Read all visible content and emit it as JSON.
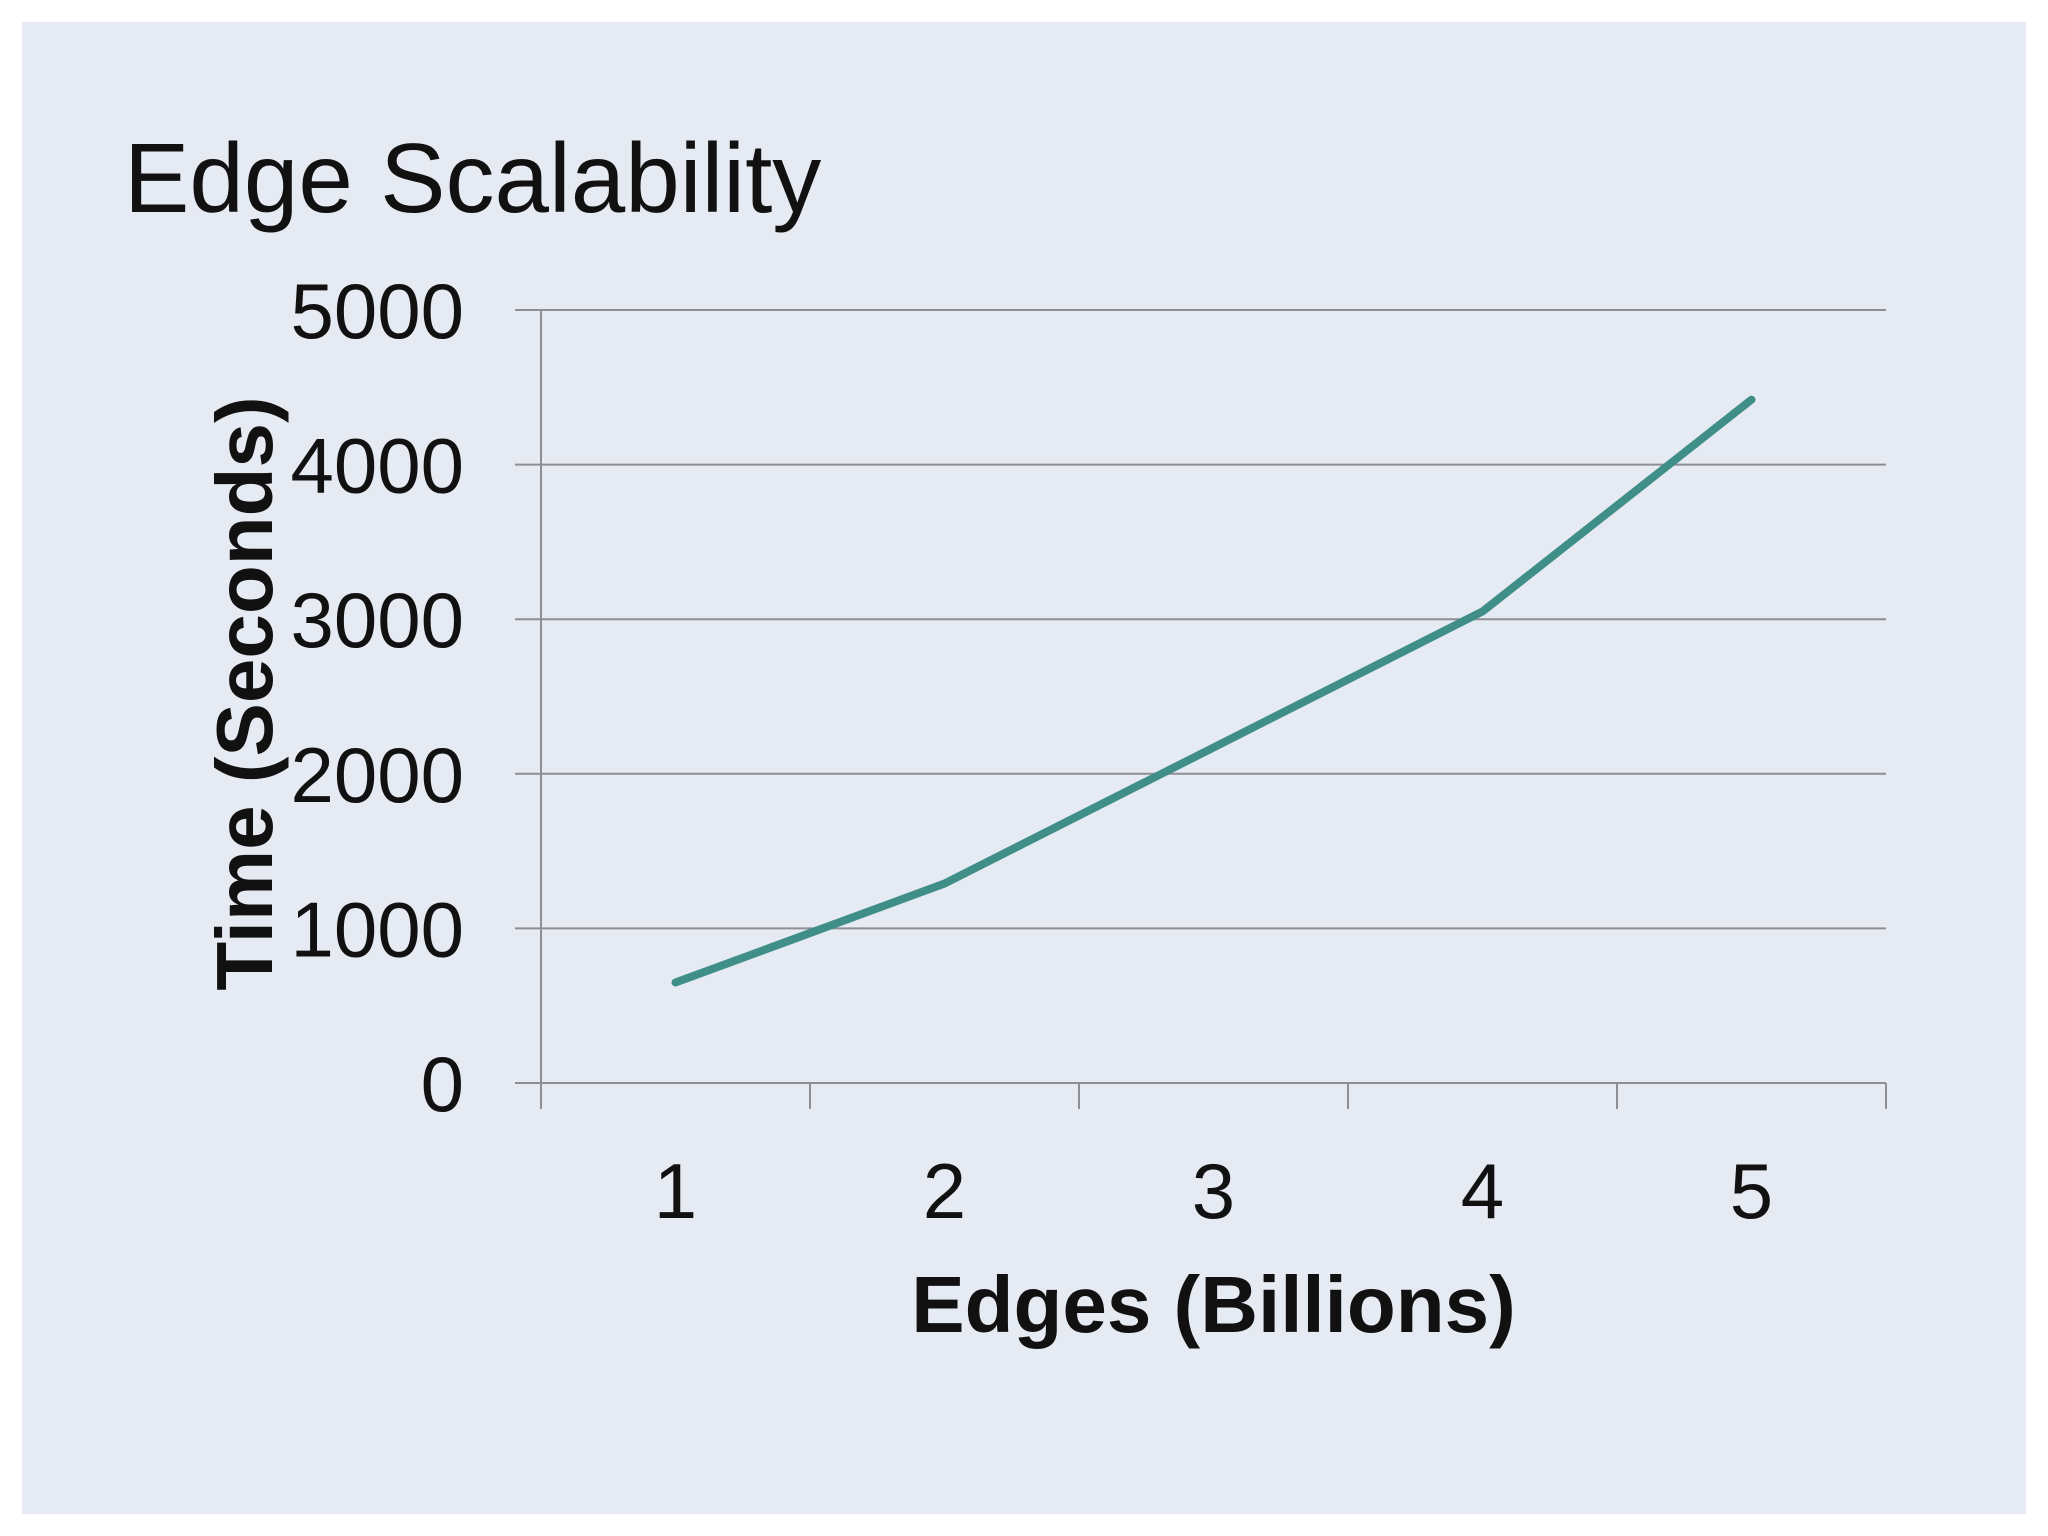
{
  "chart_data": {
    "type": "line",
    "title": "Edge Scalability",
    "xlabel": "Edges (Billions)",
    "ylabel": "Time (Seconds)",
    "categories": [
      "1",
      "2",
      "3",
      "4",
      "5"
    ],
    "series": [
      {
        "values": [
          650,
          1290,
          2170,
          3050,
          4420
        ]
      }
    ],
    "ylim": [
      0,
      5000
    ],
    "yticks": [
      "0",
      "1000",
      "2000",
      "3000",
      "4000",
      "5000"
    ],
    "grid": true,
    "legend": "none",
    "colors": {
      "line": "#3f8f88",
      "grid": "#8e8e95",
      "background": "#e6eaf2"
    }
  }
}
